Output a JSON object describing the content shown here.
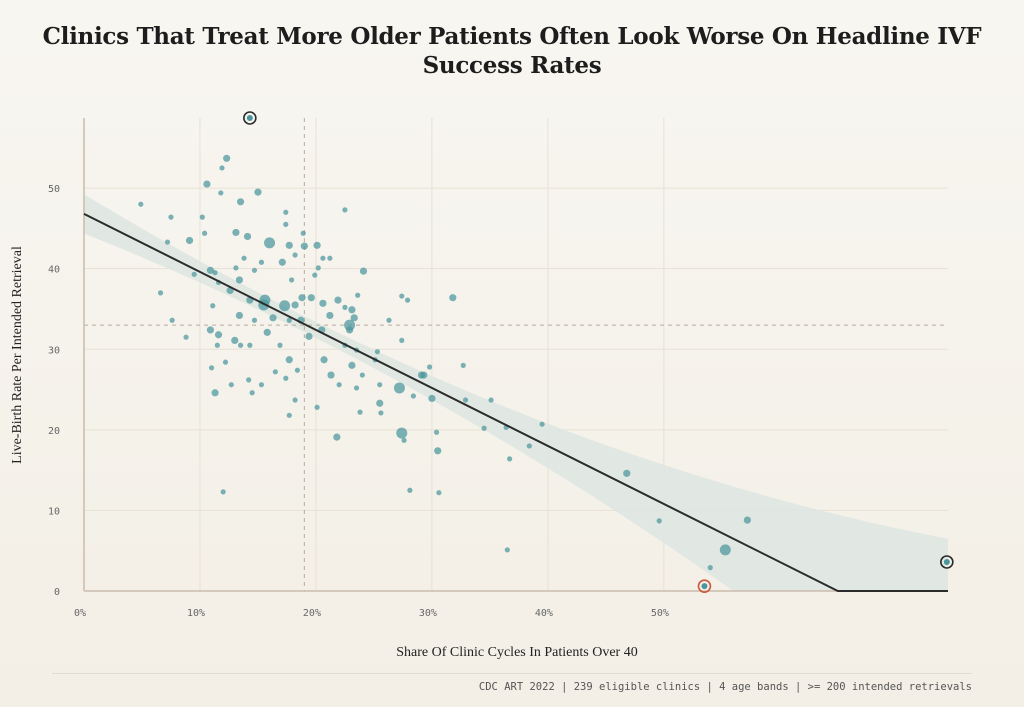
{
  "title": "Clinics That Treat More Older Patients Often Look Worse On Headline IVF Success Rates",
  "footer": "CDC ART 2022 | 239 eligible clinics | 4 age bands | >= 200 intended retrievals",
  "chart_data": {
    "type": "scatter",
    "title": "Clinics That Treat More Older Patients Often Look Worse On Headline IVF Success Rates",
    "xlabel": "Share Of Clinic Cycles In Patients Over 40",
    "ylabel": "Live-Birth Rate Per Intended Retrieval",
    "xlim": [
      0,
      74.5
    ],
    "ylim": [
      0,
      58.7
    ],
    "x_ticks": [
      "0%",
      "10%",
      "20%",
      "30%",
      "40%",
      "50%"
    ],
    "x_tick_values": [
      0,
      10,
      20,
      30,
      40,
      50
    ],
    "y_ticks": [
      "0",
      "10",
      "20",
      "30",
      "40",
      "50"
    ],
    "y_tick_values": [
      0,
      10,
      20,
      30,
      40,
      50
    ],
    "grid": true,
    "colors": {
      "point": "#4a969c",
      "line": "#2b2b2b",
      "band": "#dde5e1",
      "highlight": "#2b2b2b",
      "highlight_alt": "#c9583e",
      "reference": "#b8ad9e"
    },
    "reference_lines": {
      "x_mean": 19.0,
      "y_mean": 33.0
    },
    "fit": {
      "intercept": 46.8,
      "slope": -0.72,
      "floor": 0
    },
    "points": [
      [
        4.9,
        48.0,
        1
      ],
      [
        6.6,
        37.0,
        1
      ],
      [
        7.5,
        46.4,
        1
      ],
      [
        7.2,
        43.3,
        1
      ],
      [
        7.6,
        33.6,
        1
      ],
      [
        8.8,
        31.5,
        1
      ],
      [
        9.1,
        43.5,
        2
      ],
      [
        9.5,
        39.3,
        1
      ],
      [
        10.6,
        50.5,
        2
      ],
      [
        10.2,
        46.4,
        1
      ],
      [
        10.4,
        44.4,
        1
      ],
      [
        10.9,
        39.8,
        2
      ],
      [
        11.1,
        35.4,
        1
      ],
      [
        10.9,
        32.4,
        2
      ],
      [
        11.0,
        27.7,
        1
      ],
      [
        11.3,
        24.6,
        2
      ],
      [
        12.0,
        12.3,
        1
      ],
      [
        12.3,
        53.7,
        2
      ],
      [
        11.9,
        52.5,
        1
      ],
      [
        11.8,
        49.4,
        1
      ],
      [
        13.1,
        44.5,
        2
      ],
      [
        13.5,
        48.3,
        2
      ],
      [
        14.1,
        44.0,
        2
      ],
      [
        15.0,
        49.5,
        2
      ],
      [
        16.0,
        43.2,
        3
      ],
      [
        13.4,
        38.6,
        2
      ],
      [
        12.6,
        37.3,
        2
      ],
      [
        14.3,
        36.1,
        2
      ],
      [
        15.5,
        35.5,
        3
      ],
      [
        16.3,
        33.9,
        2
      ],
      [
        15.8,
        32.1,
        2
      ],
      [
        14.3,
        30.5,
        1
      ],
      [
        13.0,
        31.1,
        2
      ],
      [
        12.2,
        28.4,
        1
      ],
      [
        12.7,
        25.6,
        1
      ],
      [
        14.2,
        26.2,
        1
      ],
      [
        15.3,
        25.6,
        1
      ],
      [
        14.5,
        24.6,
        1
      ],
      [
        17.4,
        47.0,
        1
      ],
      [
        17.4,
        45.5,
        1
      ],
      [
        17.7,
        42.9,
        2
      ],
      [
        18.9,
        44.4,
        1
      ],
      [
        19.0,
        42.8,
        2
      ],
      [
        18.2,
        41.7,
        1
      ],
      [
        17.1,
        40.8,
        2
      ],
      [
        17.9,
        38.6,
        1
      ],
      [
        18.8,
        36.4,
        2
      ],
      [
        18.2,
        35.5,
        2
      ],
      [
        17.3,
        35.4,
        3
      ],
      [
        17.7,
        33.6,
        1
      ],
      [
        18.7,
        33.6,
        2
      ],
      [
        19.4,
        31.6,
        2
      ],
      [
        16.9,
        30.5,
        1
      ],
      [
        17.7,
        28.7,
        2
      ],
      [
        18.4,
        27.4,
        1
      ],
      [
        17.4,
        26.4,
        1
      ],
      [
        16.5,
        27.2,
        1
      ],
      [
        17.7,
        21.8,
        1
      ],
      [
        18.2,
        23.7,
        1
      ],
      [
        20.1,
        22.8,
        1
      ],
      [
        20.1,
        42.9,
        2
      ],
      [
        20.6,
        41.3,
        1
      ],
      [
        21.2,
        41.3,
        1
      ],
      [
        20.2,
        40.1,
        1
      ],
      [
        19.9,
        39.2,
        1
      ],
      [
        19.6,
        36.4,
        2
      ],
      [
        20.6,
        35.7,
        2
      ],
      [
        21.9,
        36.1,
        2
      ],
      [
        21.2,
        34.2,
        2
      ],
      [
        20.5,
        32.4,
        2
      ],
      [
        22.5,
        35.2,
        1
      ],
      [
        23.1,
        34.9,
        2
      ],
      [
        22.9,
        32.4,
        2
      ],
      [
        22.5,
        30.5,
        1
      ],
      [
        20.7,
        28.7,
        2
      ],
      [
        21.3,
        26.8,
        2
      ],
      [
        22.0,
        25.6,
        1
      ],
      [
        21.8,
        19.1,
        2
      ],
      [
        22.5,
        47.3,
        1
      ],
      [
        24.1,
        39.7,
        2
      ],
      [
        23.6,
        36.7,
        1
      ],
      [
        23.3,
        33.9,
        2
      ],
      [
        22.9,
        33.0,
        3
      ],
      [
        23.5,
        29.9,
        1
      ],
      [
        23.1,
        28.0,
        2
      ],
      [
        24.0,
        26.8,
        1
      ],
      [
        23.5,
        25.2,
        1
      ],
      [
        23.8,
        22.2,
        1
      ],
      [
        25.5,
        25.6,
        1
      ],
      [
        25.1,
        28.7,
        1
      ],
      [
        25.3,
        29.7,
        1
      ],
      [
        26.3,
        33.6,
        1
      ],
      [
        25.6,
        22.1,
        1
      ],
      [
        25.5,
        23.3,
        2
      ],
      [
        27.2,
        25.2,
        3
      ],
      [
        27.4,
        19.6,
        3
      ],
      [
        27.6,
        18.7,
        1
      ],
      [
        27.4,
        36.6,
        1
      ],
      [
        27.9,
        36.1,
        1
      ],
      [
        27.4,
        31.1,
        1
      ],
      [
        28.4,
        24.2,
        1
      ],
      [
        29.1,
        26.8,
        2
      ],
      [
        29.3,
        26.8,
        2
      ],
      [
        29.8,
        27.8,
        1
      ],
      [
        30.0,
        23.9,
        2
      ],
      [
        30.4,
        19.7,
        1
      ],
      [
        30.5,
        17.4,
        2
      ],
      [
        30.6,
        12.2,
        1
      ],
      [
        28.1,
        12.5,
        1
      ],
      [
        31.8,
        36.4,
        2
      ],
      [
        32.7,
        28.0,
        1
      ],
      [
        32.9,
        23.7,
        1
      ],
      [
        34.5,
        20.2,
        1
      ],
      [
        35.1,
        23.7,
        1
      ],
      [
        36.4,
        20.3,
        1
      ],
      [
        36.7,
        16.4,
        1
      ],
      [
        36.5,
        5.1,
        1
      ],
      [
        38.4,
        18.0,
        1
      ],
      [
        39.5,
        20.7,
        1
      ],
      [
        46.8,
        14.6,
        2
      ],
      [
        49.6,
        8.7,
        1
      ],
      [
        55.3,
        5.1,
        3
      ],
      [
        57.2,
        8.8,
        2
      ],
      [
        54.0,
        2.9,
        1
      ],
      [
        15.6,
        36.1,
        3
      ],
      [
        11.3,
        39.5,
        1
      ],
      [
        11.6,
        38.3,
        1
      ],
      [
        13.1,
        40.1,
        1
      ],
      [
        13.8,
        41.3,
        1
      ],
      [
        14.7,
        39.8,
        1
      ],
      [
        15.3,
        40.8,
        1
      ],
      [
        13.4,
        34.2,
        2
      ],
      [
        14.7,
        33.6,
        1
      ],
      [
        11.6,
        31.8,
        2
      ],
      [
        11.5,
        30.5,
        1
      ],
      [
        13.5,
        30.5,
        1
      ]
    ],
    "highlighted_points": [
      {
        "x": 14.3,
        "y": 58.7,
        "ring": "#2b2b2b"
      },
      {
        "x": 74.4,
        "y": 3.6,
        "ring": "#2b2b2b"
      },
      {
        "x": 53.5,
        "y": 0.6,
        "ring": "#c9583e"
      }
    ]
  }
}
